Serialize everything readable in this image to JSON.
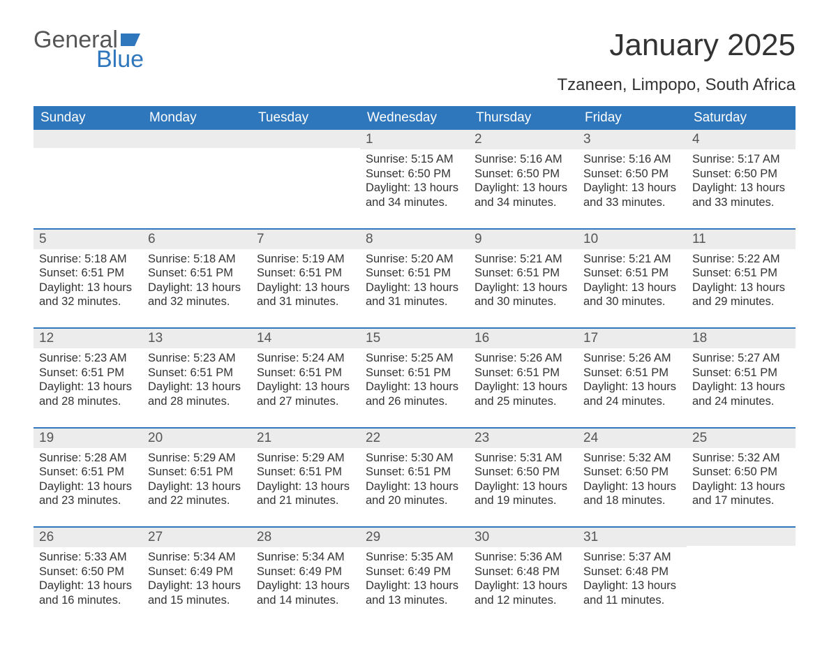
{
  "brand": {
    "word1": "General",
    "word2": "Blue",
    "word1_color": "#555555",
    "word2_color": "#2f77bc",
    "flag_color": "#2f77bc"
  },
  "title": "January 2025",
  "location": "Tzaneen, Limpopo, South Africa",
  "columns": [
    "Sunday",
    "Monday",
    "Tuesday",
    "Wednesday",
    "Thursday",
    "Friday",
    "Saturday"
  ],
  "style": {
    "header_bg": "#2f77bc",
    "header_fg": "#ffffff",
    "row_border_color": "#2f77bc",
    "daynum_bg": "#ececec",
    "daynum_fg": "#555555",
    "body_fg": "#333333",
    "background": "#ffffff",
    "title_fontsize": 44,
    "location_fontsize": 24,
    "header_fontsize": 19,
    "daynum_fontsize": 19,
    "body_fontsize": 16.5
  },
  "weeks": [
    [
      null,
      null,
      null,
      {
        "n": "1",
        "sunrise": "5:15 AM",
        "sunset": "6:50 PM",
        "daylight": "13 hours and 34 minutes."
      },
      {
        "n": "2",
        "sunrise": "5:16 AM",
        "sunset": "6:50 PM",
        "daylight": "13 hours and 34 minutes."
      },
      {
        "n": "3",
        "sunrise": "5:16 AM",
        "sunset": "6:50 PM",
        "daylight": "13 hours and 33 minutes."
      },
      {
        "n": "4",
        "sunrise": "5:17 AM",
        "sunset": "6:50 PM",
        "daylight": "13 hours and 33 minutes."
      }
    ],
    [
      {
        "n": "5",
        "sunrise": "5:18 AM",
        "sunset": "6:51 PM",
        "daylight": "13 hours and 32 minutes."
      },
      {
        "n": "6",
        "sunrise": "5:18 AM",
        "sunset": "6:51 PM",
        "daylight": "13 hours and 32 minutes."
      },
      {
        "n": "7",
        "sunrise": "5:19 AM",
        "sunset": "6:51 PM",
        "daylight": "13 hours and 31 minutes."
      },
      {
        "n": "8",
        "sunrise": "5:20 AM",
        "sunset": "6:51 PM",
        "daylight": "13 hours and 31 minutes."
      },
      {
        "n": "9",
        "sunrise": "5:21 AM",
        "sunset": "6:51 PM",
        "daylight": "13 hours and 30 minutes."
      },
      {
        "n": "10",
        "sunrise": "5:21 AM",
        "sunset": "6:51 PM",
        "daylight": "13 hours and 30 minutes."
      },
      {
        "n": "11",
        "sunrise": "5:22 AM",
        "sunset": "6:51 PM",
        "daylight": "13 hours and 29 minutes."
      }
    ],
    [
      {
        "n": "12",
        "sunrise": "5:23 AM",
        "sunset": "6:51 PM",
        "daylight": "13 hours and 28 minutes."
      },
      {
        "n": "13",
        "sunrise": "5:23 AM",
        "sunset": "6:51 PM",
        "daylight": "13 hours and 28 minutes."
      },
      {
        "n": "14",
        "sunrise": "5:24 AM",
        "sunset": "6:51 PM",
        "daylight": "13 hours and 27 minutes."
      },
      {
        "n": "15",
        "sunrise": "5:25 AM",
        "sunset": "6:51 PM",
        "daylight": "13 hours and 26 minutes."
      },
      {
        "n": "16",
        "sunrise": "5:26 AM",
        "sunset": "6:51 PM",
        "daylight": "13 hours and 25 minutes."
      },
      {
        "n": "17",
        "sunrise": "5:26 AM",
        "sunset": "6:51 PM",
        "daylight": "13 hours and 24 minutes."
      },
      {
        "n": "18",
        "sunrise": "5:27 AM",
        "sunset": "6:51 PM",
        "daylight": "13 hours and 24 minutes."
      }
    ],
    [
      {
        "n": "19",
        "sunrise": "5:28 AM",
        "sunset": "6:51 PM",
        "daylight": "13 hours and 23 minutes."
      },
      {
        "n": "20",
        "sunrise": "5:29 AM",
        "sunset": "6:51 PM",
        "daylight": "13 hours and 22 minutes."
      },
      {
        "n": "21",
        "sunrise": "5:29 AM",
        "sunset": "6:51 PM",
        "daylight": "13 hours and 21 minutes."
      },
      {
        "n": "22",
        "sunrise": "5:30 AM",
        "sunset": "6:51 PM",
        "daylight": "13 hours and 20 minutes."
      },
      {
        "n": "23",
        "sunrise": "5:31 AM",
        "sunset": "6:50 PM",
        "daylight": "13 hours and 19 minutes."
      },
      {
        "n": "24",
        "sunrise": "5:32 AM",
        "sunset": "6:50 PM",
        "daylight": "13 hours and 18 minutes."
      },
      {
        "n": "25",
        "sunrise": "5:32 AM",
        "sunset": "6:50 PM",
        "daylight": "13 hours and 17 minutes."
      }
    ],
    [
      {
        "n": "26",
        "sunrise": "5:33 AM",
        "sunset": "6:50 PM",
        "daylight": "13 hours and 16 minutes."
      },
      {
        "n": "27",
        "sunrise": "5:34 AM",
        "sunset": "6:49 PM",
        "daylight": "13 hours and 15 minutes."
      },
      {
        "n": "28",
        "sunrise": "5:34 AM",
        "sunset": "6:49 PM",
        "daylight": "13 hours and 14 minutes."
      },
      {
        "n": "29",
        "sunrise": "5:35 AM",
        "sunset": "6:49 PM",
        "daylight": "13 hours and 13 minutes."
      },
      {
        "n": "30",
        "sunrise": "5:36 AM",
        "sunset": "6:48 PM",
        "daylight": "13 hours and 12 minutes."
      },
      {
        "n": "31",
        "sunrise": "5:37 AM",
        "sunset": "6:48 PM",
        "daylight": "13 hours and 11 minutes."
      },
      null
    ]
  ],
  "labels": {
    "sunrise": "Sunrise:",
    "sunset": "Sunset:",
    "daylight": "Daylight:"
  }
}
